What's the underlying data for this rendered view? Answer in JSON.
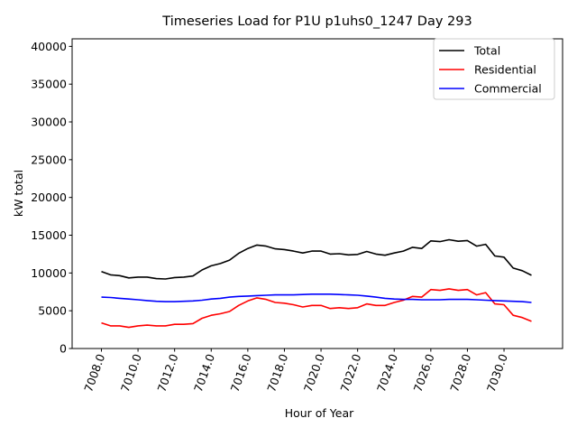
{
  "chart_data": {
    "type": "line",
    "title": "Timeseries Load for P1U p1uhs0_1247  Day 293",
    "xlabel": "Hour of Year",
    "ylabel": "kW total",
    "xlim": [
      7006.4,
      7033.2
    ],
    "ylim": [
      0,
      41000
    ],
    "xticks": [
      7008,
      7010,
      7012,
      7014,
      7016,
      7018,
      7020,
      7022,
      7024,
      7026,
      7028,
      7030
    ],
    "xtick_labels": [
      "7008.0",
      "7010.0",
      "7012.0",
      "7014.0",
      "7016.0",
      "7018.0",
      "7020.0",
      "7022.0",
      "7024.0",
      "7026.0",
      "7028.0",
      "7030.0"
    ],
    "yticks": [
      0,
      5000,
      10000,
      15000,
      20000,
      25000,
      30000,
      35000,
      40000
    ],
    "ytick_labels": [
      "0",
      "5000",
      "10000",
      "15000",
      "20000",
      "25000",
      "30000",
      "35000",
      "40000"
    ],
    "grid": false,
    "legend_position": "top-right",
    "x_start": 7008,
    "x_step": 0.5,
    "series": [
      {
        "name": "Total",
        "color": "#000000",
        "values": [
          10200,
          9750,
          9650,
          9350,
          9450,
          9450,
          9250,
          9200,
          9400,
          9450,
          9600,
          10400,
          10950,
          11250,
          11700,
          12600,
          13250,
          13700,
          13550,
          13200,
          13100,
          12900,
          12650,
          12900,
          12900,
          12500,
          12550,
          12400,
          12450,
          12850,
          12500,
          12350,
          12650,
          12900,
          13400,
          13250,
          14250,
          14150,
          14400,
          14200,
          14300,
          13550,
          13800,
          12250,
          12100,
          10650,
          10300,
          9700
        ]
      },
      {
        "name": "Residential",
        "color": "#ff0000",
        "values": [
          3400,
          3000,
          3000,
          2800,
          3000,
          3100,
          3000,
          3000,
          3200,
          3200,
          3300,
          4000,
          4400,
          4600,
          4900,
          5700,
          6300,
          6700,
          6500,
          6100,
          6000,
          5800,
          5500,
          5700,
          5700,
          5300,
          5400,
          5300,
          5400,
          5900,
          5700,
          5700,
          6100,
          6400,
          6900,
          6800,
          7800,
          7700,
          7900,
          7700,
          7800,
          7100,
          7400,
          5900,
          5800,
          4400,
          4100,
          3600
        ]
      },
      {
        "name": "Commercial",
        "color": "#0000ff",
        "values": [
          6800,
          6750,
          6650,
          6550,
          6450,
          6350,
          6250,
          6200,
          6200,
          6250,
          6300,
          6400,
          6550,
          6650,
          6800,
          6900,
          6950,
          7000,
          7050,
          7100,
          7100,
          7100,
          7150,
          7200,
          7200,
          7200,
          7150,
          7100,
          7050,
          6950,
          6800,
          6650,
          6550,
          6500,
          6500,
          6450,
          6450,
          6450,
          6500,
          6500,
          6500,
          6450,
          6400,
          6350,
          6300,
          6250,
          6200,
          6100
        ]
      }
    ]
  }
}
